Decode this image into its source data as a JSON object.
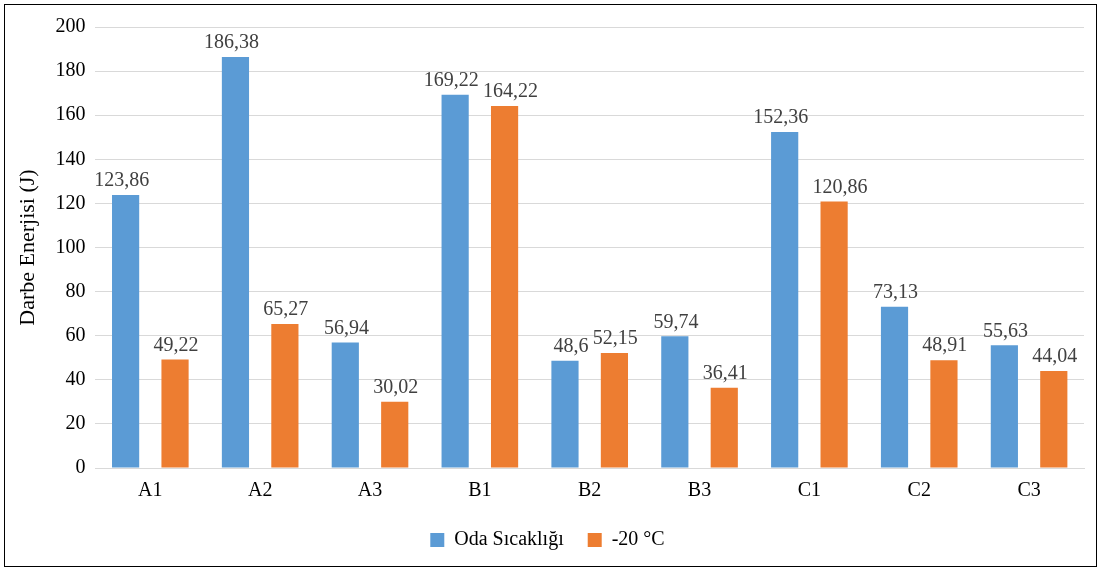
{
  "chart_data": {
    "type": "bar",
    "ylabel": "Darbe Enerjisi (J)",
    "categories": [
      "A1",
      "A2",
      "A3",
      "B1",
      "B2",
      "B3",
      "C1",
      "C2",
      "C3"
    ],
    "series": [
      {
        "name": "Oda Sıcaklığı",
        "color": "#5b9bd5",
        "values": [
          123.86,
          186.38,
          56.94,
          169.22,
          48.6,
          59.74,
          152.36,
          73.13,
          55.63
        ],
        "value_labels": [
          "123,86",
          "186,38",
          "56,94",
          "169,22",
          "48,6",
          "59,74",
          "152,36",
          "73,13",
          "55,63"
        ]
      },
      {
        "name": "-20 °C",
        "color": "#ed7d31",
        "values": [
          49.22,
          65.27,
          30.02,
          164.22,
          52.15,
          36.41,
          120.86,
          48.91,
          44.04
        ],
        "value_labels": [
          "49,22",
          "65,27",
          "30,02",
          "164,22",
          "52,15",
          "36,41",
          "120,86",
          "48,91",
          "44,04"
        ]
      }
    ],
    "ylim": [
      0,
      200
    ],
    "yticks": [
      0,
      20,
      40,
      60,
      80,
      100,
      120,
      140,
      160,
      180,
      200
    ],
    "grid": "y",
    "legend": "bottom"
  }
}
